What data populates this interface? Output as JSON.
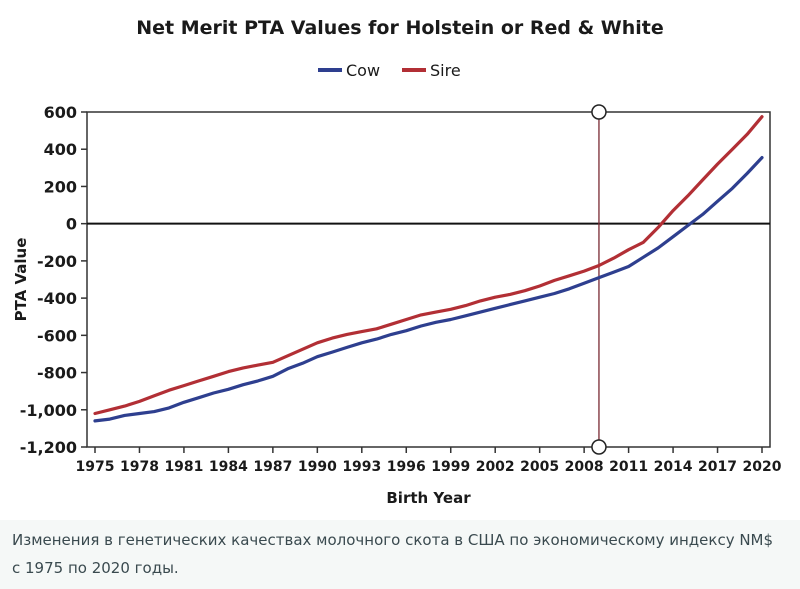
{
  "chart_data": {
    "type": "line",
    "title": "Net Merit PTA Values for Holstein or Red & White",
    "xlabel": "Birth Year",
    "ylabel": "PTA Value",
    "xlim": [
      1975,
      2020
    ],
    "ylim": [
      -1200,
      600
    ],
    "x_ticks": [
      "1975",
      "1978",
      "1981",
      "1984",
      "1987",
      "1990",
      "1993",
      "1996",
      "1999",
      "2002",
      "2005",
      "2008",
      "2011",
      "2014",
      "2017",
      "2020"
    ],
    "y_ticks": [
      "600",
      "400",
      "200",
      "0",
      "-200",
      "-400",
      "-600",
      "-800",
      "-1,000",
      "-1,200"
    ],
    "grid": false,
    "legend_position": "top-center",
    "vertical_marker_x": 2009,
    "x": [
      1975,
      1976,
      1977,
      1978,
      1979,
      1980,
      1981,
      1982,
      1983,
      1984,
      1985,
      1986,
      1987,
      1988,
      1989,
      1990,
      1991,
      1992,
      1993,
      1994,
      1995,
      1996,
      1997,
      1998,
      1999,
      2000,
      2001,
      2002,
      2003,
      2004,
      2005,
      2006,
      2007,
      2008,
      2009,
      2010,
      2011,
      2012,
      2013,
      2014,
      2015,
      2016,
      2017,
      2018,
      2019,
      2020
    ],
    "series": [
      {
        "name": "Cow",
        "color": "#2e3f8f",
        "values": [
          -1060,
          -1050,
          -1030,
          -1020,
          -1010,
          -990,
          -960,
          -935,
          -910,
          -890,
          -865,
          -845,
          -820,
          -780,
          -750,
          -715,
          -690,
          -665,
          -640,
          -620,
          -595,
          -575,
          -550,
          -530,
          -515,
          -495,
          -475,
          -455,
          -435,
          -415,
          -395,
          -375,
          -350,
          -320,
          -290,
          -260,
          -230,
          -180,
          -130,
          -70,
          -10,
          50,
          120,
          190,
          270,
          355
        ]
      },
      {
        "name": "Sire",
        "color": "#b22f35",
        "values": [
          -1020,
          -1000,
          -980,
          -955,
          -925,
          -895,
          -870,
          -845,
          -820,
          -795,
          -775,
          -760,
          -745,
          -710,
          -675,
          -640,
          -615,
          -595,
          -580,
          -565,
          -540,
          -515,
          -490,
          -475,
          -460,
          -440,
          -415,
          -395,
          -380,
          -360,
          -335,
          -305,
          -280,
          -255,
          -225,
          -185,
          -140,
          -100,
          -20,
          70,
          150,
          235,
          320,
          400,
          480,
          575
        ]
      }
    ]
  },
  "caption": {
    "line1": "Изменения в генетических качествах молочного скота в США по экономическому индексу NM$",
    "line2": "с 1975 по 2020 годы."
  }
}
